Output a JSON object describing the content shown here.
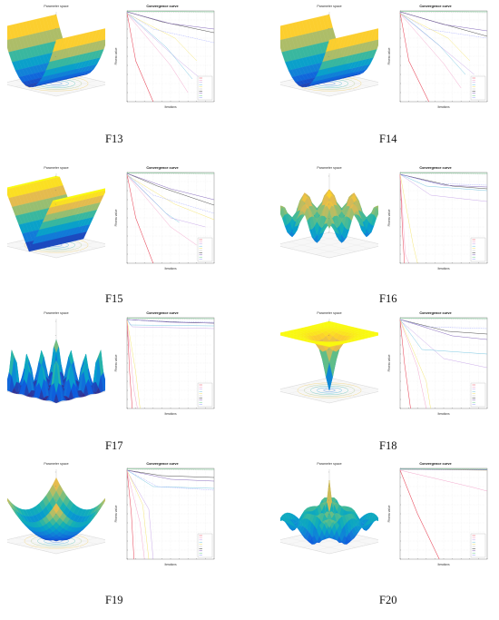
{
  "panels": [
    {
      "id": "F13",
      "label": "F13",
      "surface_title": "Parameter space",
      "conv_title": "Convergence curve",
      "surface": "valley",
      "xlabel": "Iterations",
      "ylabel": "Fitness value"
    },
    {
      "id": "F14",
      "label": "F14",
      "surface_title": "Parameter space",
      "conv_title": "Convergence curve",
      "surface": "valley",
      "xlabel": "Iterations",
      "ylabel": "Fitness value"
    },
    {
      "id": "F15",
      "label": "F15",
      "surface_title": "Parameter space",
      "conv_title": "Convergence curve",
      "surface": "trough",
      "xlabel": "Iterations",
      "ylabel": "Fitness value"
    },
    {
      "id": "F16",
      "label": "F16",
      "surface_title": "Parameter space",
      "conv_title": "Convergence curve",
      "surface": "rastrigin",
      "xlabel": "Iterations",
      "ylabel": "Fitness value"
    },
    {
      "id": "F17",
      "label": "F17",
      "surface_title": "Parameter space",
      "conv_title": "Convergence curve",
      "surface": "pillars",
      "xlabel": "Iterations",
      "ylabel": "Fitness value"
    },
    {
      "id": "F18",
      "label": "F18",
      "surface_title": "Parameter space",
      "conv_title": "Convergence curve",
      "surface": "funnel",
      "xlabel": "Iterations",
      "ylabel": "Fitness value"
    },
    {
      "id": "F19",
      "label": "F19",
      "surface_title": "Parameter space",
      "conv_title": "Convergence curve",
      "surface": "bowl",
      "xlabel": "Iterations",
      "ylabel": "Fitness value"
    },
    {
      "id": "F20",
      "label": "F20",
      "surface_title": "Parameter space",
      "conv_title": "Convergence curve",
      "surface": "ripples",
      "xlabel": "Iterations",
      "ylabel": "Fitness value"
    }
  ],
  "chart_data": [
    {
      "type": "line",
      "title": "Convergence curve",
      "xlabel": "Iterations",
      "ylabel": "Fitness value",
      "xlim": [
        0,
        500
      ],
      "yscale": "log",
      "grid": true,
      "legend_position": "bottom-right"
    },
    {
      "type": "line",
      "title": "Convergence curve",
      "xlabel": "Iterations",
      "ylabel": "Fitness value",
      "xlim": [
        0,
        500
      ],
      "yscale": "log",
      "grid": true,
      "legend_position": "bottom-right"
    },
    {
      "type": "line",
      "title": "Convergence curve",
      "xlabel": "Iterations",
      "ylabel": "Fitness value",
      "xlim": [
        0,
        500
      ],
      "yscale": "log",
      "grid": true,
      "legend_position": "bottom-right"
    },
    {
      "type": "line",
      "title": "Convergence curve",
      "xlabel": "Iterations",
      "ylabel": "Fitness value",
      "xlim": [
        0,
        500
      ],
      "yscale": "log",
      "grid": true,
      "legend_position": "right"
    },
    {
      "type": "line",
      "title": "Convergence curve",
      "xlabel": "Iterations",
      "ylabel": "Fitness value",
      "xlim": [
        0,
        500
      ],
      "yscale": "log",
      "grid": true,
      "legend_position": "bottom-right"
    },
    {
      "type": "line",
      "title": "Convergence curve",
      "xlabel": "Iterations",
      "ylabel": "Fitness value",
      "xlim": [
        0,
        500
      ],
      "yscale": "log",
      "grid": true,
      "legend_position": "right"
    },
    {
      "type": "line",
      "title": "Convergence curve",
      "xlabel": "Iterations",
      "ylabel": "Fitness value",
      "xlim": [
        0,
        500
      ],
      "yscale": "log",
      "grid": true,
      "legend_position": "bottom-right"
    },
    {
      "type": "line",
      "title": "Convergence curve",
      "xlabel": "Iterations",
      "ylabel": "Fitness value",
      "xlim": [
        0,
        500
      ],
      "yscale": "log",
      "grid": true,
      "legend_position": "bottom-right"
    }
  ],
  "series_colors": [
    "#e8485a",
    "#f2a0c8",
    "#c5a3e8",
    "#6fc3e0",
    "#f3e36a",
    "#bfbfbf",
    "#3a3a3a",
    "#7b5bb6",
    "#6bd08a",
    "#9aa0ff"
  ]
}
